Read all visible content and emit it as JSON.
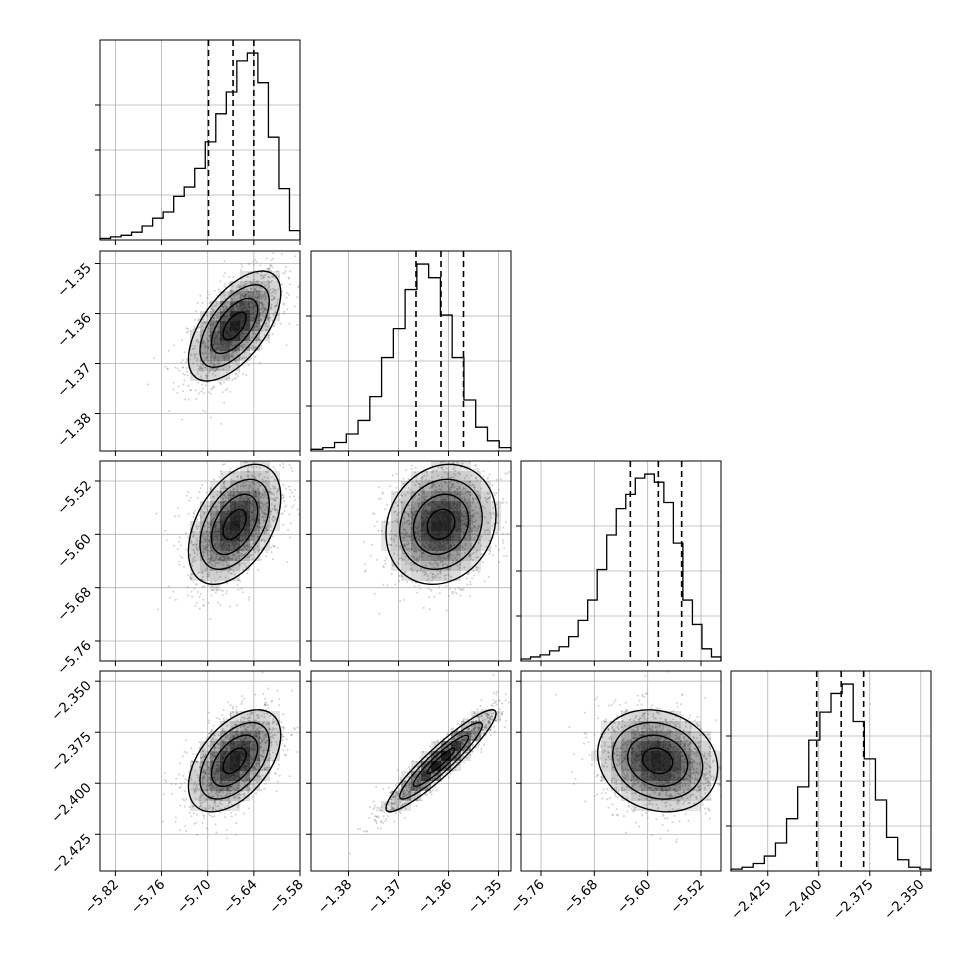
{
  "chart_data": {
    "type": "corner",
    "variables": [
      {
        "range": [
          -5.84,
          -5.58
        ],
        "ticks": [
          -5.82,
          -5.76,
          -5.7,
          -5.64,
          -5.58
        ],
        "tick_labels": [
          "−5.82",
          "−5.76",
          "−5.70",
          "−5.64",
          "−5.58"
        ],
        "quantiles": [
          -5.699,
          -5.667,
          -5.64
        ],
        "hist": [
          1,
          2,
          3,
          5,
          9,
          14,
          18,
          28,
          34,
          46,
          63,
          81,
          95,
          115,
          120,
          101,
          66,
          33,
          6
        ]
      },
      {
        "range": [
          -1.3875,
          -1.3475
        ],
        "ticks": [
          -1.38,
          -1.37,
          -1.36,
          -1.35
        ],
        "tick_labels": [
          "−1.38",
          "−1.37",
          "−1.36",
          "−1.35"
        ],
        "quantiles": [
          -1.3665,
          -1.3615,
          -1.357
        ],
        "hist": [
          1,
          2,
          5,
          10,
          18,
          32,
          55,
          72,
          95,
          110,
          102,
          80,
          55,
          30,
          14,
          6,
          2
        ]
      },
      {
        "range": [
          -5.79,
          -5.49
        ],
        "ticks": [
          -5.76,
          -5.68,
          -5.6,
          -5.52
        ],
        "tick_labels": [
          "−5.76",
          "−5.68",
          "−5.60",
          "−5.52"
        ],
        "quantiles": [
          -5.626,
          -5.584,
          -5.549
        ],
        "hist": [
          1,
          2,
          3,
          5,
          7,
          12,
          20,
          30,
          45,
          62,
          75,
          82,
          90,
          92,
          88,
          78,
          58,
          30,
          18,
          6,
          2
        ]
      },
      {
        "range": [
          -2.443,
          -2.345
        ],
        "ticks": [
          -2.425,
          -2.4,
          -2.375,
          -2.35
        ],
        "tick_labels": [
          "−2.425",
          "−2.400",
          "−2.375",
          "−2.350"
        ],
        "quantiles": [
          -2.401,
          -2.389,
          -2.378
        ],
        "hist": [
          1,
          2,
          4,
          8,
          15,
          28,
          45,
          70,
          85,
          95,
          100,
          80,
          60,
          38,
          18,
          6,
          2,
          1
        ]
      }
    ],
    "pairs": [
      {
        "x": 0,
        "y": 1,
        "center": [
          -5.665,
          -1.3625
        ],
        "spread": [
          0.03,
          0.0055
        ],
        "rho": 0.6
      },
      {
        "x": 0,
        "y": 2,
        "center": [
          -5.665,
          -5.585
        ],
        "spread": [
          0.03,
          0.045
        ],
        "rho": 0.45
      },
      {
        "x": 1,
        "y": 2,
        "center": [
          -1.3615,
          -5.585
        ],
        "spread": [
          0.0055,
          0.045
        ],
        "rho": 0.15
      },
      {
        "x": 0,
        "y": 3,
        "center": [
          -5.665,
          -2.389
        ],
        "spread": [
          0.03,
          0.0125
        ],
        "rho": 0.5
      },
      {
        "x": 1,
        "y": 3,
        "center": [
          -1.3615,
          -2.389
        ],
        "spread": [
          0.0055,
          0.0125
        ],
        "rho": 0.93
      },
      {
        "x": 2,
        "y": 3,
        "center": [
          -5.585,
          -2.389
        ],
        "spread": [
          0.045,
          0.0125
        ],
        "rho": -0.15
      }
    ],
    "grid": true,
    "scatter_color": "#7f7f7f",
    "density_color": "#000000",
    "contour_color": "#000000",
    "quantile_line_style": "dashed"
  }
}
